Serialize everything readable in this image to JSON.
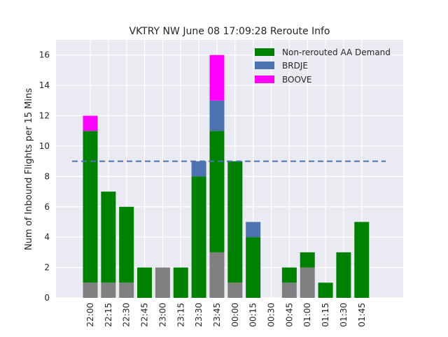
{
  "chart_data": {
    "type": "bar",
    "stacked": true,
    "title": "VKTRY NW June 08 17:09:28 Reroute Info",
    "xlabel": "",
    "ylabel": "Num of Inbound Flights per 15 Mins",
    "ylim": [
      0,
      17
    ],
    "yticks": [
      0,
      2,
      4,
      6,
      8,
      10,
      12,
      14,
      16
    ],
    "grid": true,
    "legend_position": "top-right",
    "categories": [
      "22:00",
      "22:15",
      "22:30",
      "22:45",
      "23:00",
      "23:15",
      "23:30",
      "23:45",
      "00:00",
      "00:15",
      "00:30",
      "00:45",
      "01:00",
      "01:15",
      "01:30",
      "01:45"
    ],
    "series": [
      {
        "name": "",
        "color": "#808080",
        "values": [
          1,
          1,
          1,
          0,
          2,
          0,
          0,
          3,
          1,
          0,
          0,
          1,
          2,
          0,
          0,
          0
        ]
      },
      {
        "name": "Non-rerouted AA Demand",
        "color": "#008000",
        "values": [
          10,
          6,
          5,
          2,
          0,
          2,
          8,
          8,
          8,
          4,
          0,
          1,
          1,
          1,
          3,
          5
        ]
      },
      {
        "name": "BRDJE",
        "color": "#4c72b0",
        "values": [
          0,
          0,
          0,
          0,
          0,
          0,
          1,
          2,
          0,
          1,
          0,
          0,
          0,
          0,
          0,
          0
        ]
      },
      {
        "name": "BOOVE",
        "color": "#ff00ff",
        "values": [
          1,
          0,
          0,
          0,
          0,
          0,
          0,
          3,
          0,
          0,
          0,
          0,
          0,
          0,
          0,
          0
        ]
      }
    ],
    "reference_line": {
      "value": 9,
      "color": "#4c72b0",
      "style": "dashed"
    },
    "legend": [
      "Non-rerouted AA Demand",
      "BRDJE",
      "BOOVE"
    ]
  }
}
